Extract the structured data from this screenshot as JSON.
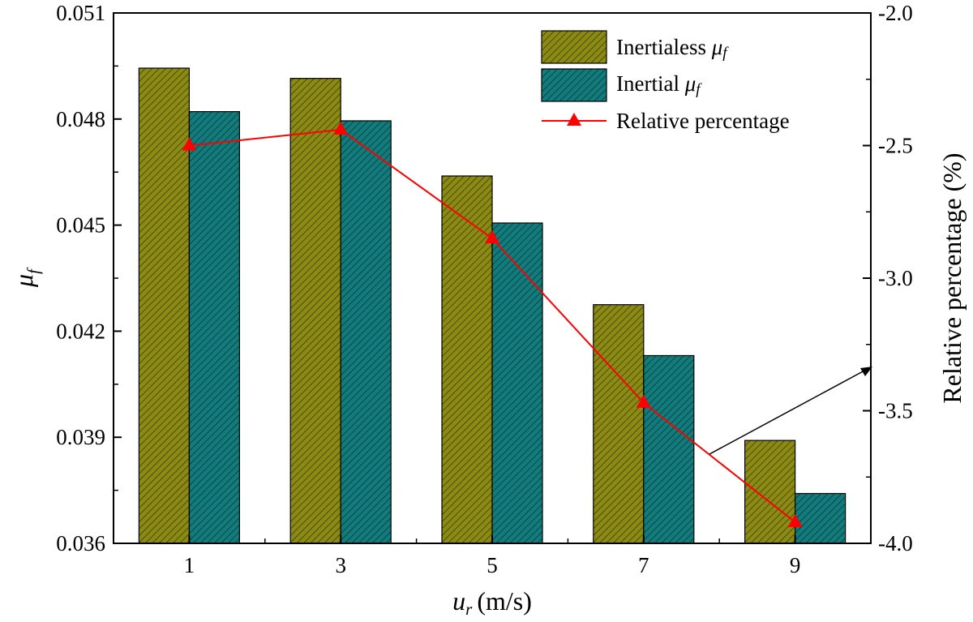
{
  "chart_data": {
    "type": "bar",
    "categories": [
      "1",
      "3",
      "5",
      "7",
      "9"
    ],
    "xlabel": {
      "symbol": "u",
      "sub": "r",
      "unit": "(m/s)"
    },
    "ylabel": {
      "symbol": "μ",
      "sub": "f"
    },
    "y2label": "Relative percentage (%)",
    "ylim": [
      0.036,
      0.051
    ],
    "y2lim": [
      -4.0,
      -2.0
    ],
    "y_ticks": [
      "0.036",
      "0.039",
      "0.042",
      "0.045",
      "0.048",
      "0.051"
    ],
    "y2_ticks": [
      "-4.0",
      "-3.5",
      "-3.0",
      "-2.5",
      "-2.0"
    ],
    "series": [
      {
        "name": "Inertialess",
        "name_suffix": {
          "symbol": "μ",
          "sub": "f"
        },
        "axis": "left",
        "kind": "bar",
        "color": "#8b8a12",
        "values": [
          0.04944,
          0.04915,
          0.04639,
          0.04275,
          0.03891
        ]
      },
      {
        "name": "Inertial",
        "name_suffix": {
          "symbol": "μ",
          "sub": "f"
        },
        "axis": "left",
        "kind": "bar",
        "color": "#127b7b",
        "values": [
          0.04821,
          0.04795,
          0.04506,
          0.04131,
          0.03741
        ]
      },
      {
        "name": "Relative percentage",
        "axis": "right",
        "kind": "line",
        "color": "#ff0000",
        "marker": "triangle",
        "values": [
          -2.5,
          -2.44,
          -2.85,
          -3.47,
          -3.92
        ]
      }
    ],
    "legend_position": "top-right",
    "grid": false,
    "annotation": {
      "type": "arrow",
      "points_to": "right-axis"
    }
  }
}
